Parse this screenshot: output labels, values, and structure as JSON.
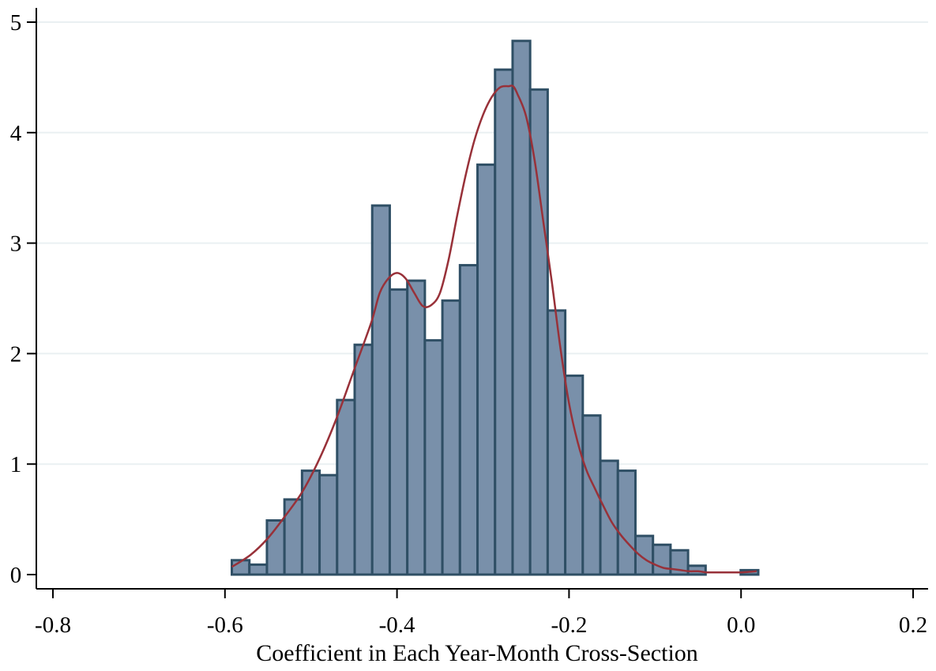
{
  "chart_data": {
    "type": "bar",
    "title": "",
    "xlabel": "Coefficient in Each Year-Month Cross-Section",
    "ylabel": "",
    "xlim": [
      -0.8,
      0.2
    ],
    "ylim": [
      0,
      5
    ],
    "x_ticks": [
      "-0.8",
      "-0.6",
      "-0.4",
      "-0.2",
      "0.0",
      "0.2"
    ],
    "y_ticks": [
      "0",
      "1",
      "2",
      "3",
      "4",
      "5"
    ],
    "grid": "horizontal",
    "legend": "none",
    "bin_width": 0.0204,
    "histogram": {
      "bin_left": [
        -0.592,
        -0.5716,
        -0.5512,
        -0.5308,
        -0.5104,
        -0.49,
        -0.4696,
        -0.4492,
        -0.4288,
        -0.4084,
        -0.388,
        -0.3676,
        -0.3472,
        -0.3268,
        -0.3064,
        -0.286,
        -0.2656,
        -0.2452,
        -0.2248,
        -0.2044,
        -0.184,
        -0.1636,
        -0.1432,
        -0.1228,
        -0.1024,
        -0.082,
        -0.0616,
        -0.0412,
        -0.0208,
        -0.0004
      ],
      "density": [
        0.13,
        0.09,
        0.49,
        0.68,
        0.94,
        0.9,
        1.58,
        2.08,
        3.34,
        2.58,
        2.66,
        2.12,
        2.48,
        2.8,
        3.71,
        4.57,
        4.83,
        4.39,
        2.39,
        1.8,
        1.44,
        1.03,
        0.94,
        0.35,
        0.27,
        0.22,
        0.08,
        0.0,
        0.0,
        0.04
      ]
    },
    "kernel_density": {
      "x": [
        -0.592,
        -0.57,
        -0.55,
        -0.53,
        -0.51,
        -0.49,
        -0.47,
        -0.45,
        -0.43,
        -0.42,
        -0.41,
        -0.4,
        -0.39,
        -0.38,
        -0.37,
        -0.36,
        -0.35,
        -0.34,
        -0.33,
        -0.32,
        -0.31,
        -0.3,
        -0.29,
        -0.28,
        -0.27,
        -0.265,
        -0.26,
        -0.25,
        -0.24,
        -0.23,
        -0.22,
        -0.21,
        -0.2,
        -0.19,
        -0.18,
        -0.17,
        -0.16,
        -0.15,
        -0.14,
        -0.13,
        -0.12,
        -0.11,
        -0.1,
        -0.09,
        -0.08,
        -0.07,
        -0.06,
        -0.05,
        -0.04,
        -0.03,
        -0.02,
        -0.01,
        0.0,
        0.018
      ],
      "y": [
        0.07,
        0.18,
        0.33,
        0.53,
        0.75,
        1.05,
        1.42,
        1.85,
        2.28,
        2.55,
        2.68,
        2.73,
        2.68,
        2.55,
        2.43,
        2.44,
        2.55,
        2.85,
        3.25,
        3.62,
        3.93,
        4.16,
        4.32,
        4.41,
        4.42,
        4.42,
        4.35,
        4.15,
        3.75,
        3.2,
        2.65,
        2.05,
        1.55,
        1.2,
        0.95,
        0.78,
        0.62,
        0.47,
        0.36,
        0.27,
        0.19,
        0.13,
        0.09,
        0.06,
        0.05,
        0.04,
        0.03,
        0.03,
        0.02,
        0.02,
        0.02,
        0.02,
        0.02,
        0.03
      ]
    },
    "colors": {
      "bar_fill": "#7990AA",
      "bar_stroke": "#2F4F65",
      "density_line": "#983139",
      "gridline": "#EAF0F2",
      "axis": "#000000"
    }
  }
}
